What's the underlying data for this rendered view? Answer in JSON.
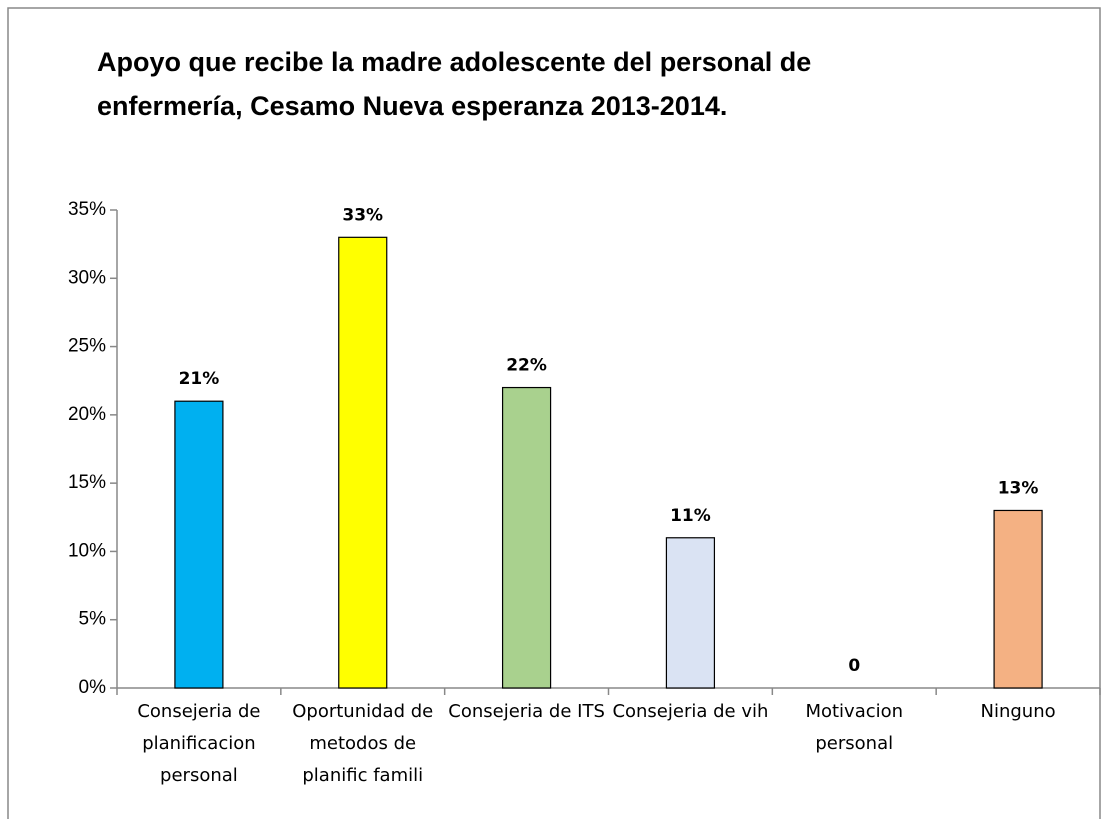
{
  "chart_data": {
    "type": "bar",
    "title": "Apoyo que recibe la madre adolescente del personal de enfermería, Cesamo Nueva esperanza 2013-2014.",
    "categories": [
      "Consejeria de planificacion personal",
      "Oportunidad de metodos de planific famili",
      "Consejeria de ITS",
      "Consejeria de vih",
      "Motivacion personal",
      "Ninguno"
    ],
    "values": [
      21,
      33,
      22,
      11,
      0,
      13
    ],
    "value_labels": [
      "21%",
      "33%",
      "22%",
      "11%",
      "0",
      "13%"
    ],
    "colors": [
      "#00b0f0",
      "#ffff00",
      "#a9d18e",
      "#dae3f3",
      "#ffffff",
      "#f4b183"
    ],
    "ylim": [
      0,
      35
    ],
    "yticks": [
      {
        "value": 0,
        "label": "0%"
      },
      {
        "value": 5,
        "label": "5%"
      },
      {
        "value": 10,
        "label": "10%"
      },
      {
        "value": 15,
        "label": "15%"
      },
      {
        "value": 20,
        "label": "20%"
      },
      {
        "value": 25,
        "label": "25%"
      },
      {
        "value": 30,
        "label": "30%"
      },
      {
        "value": 35,
        "label": "35%"
      }
    ],
    "grid": false
  }
}
